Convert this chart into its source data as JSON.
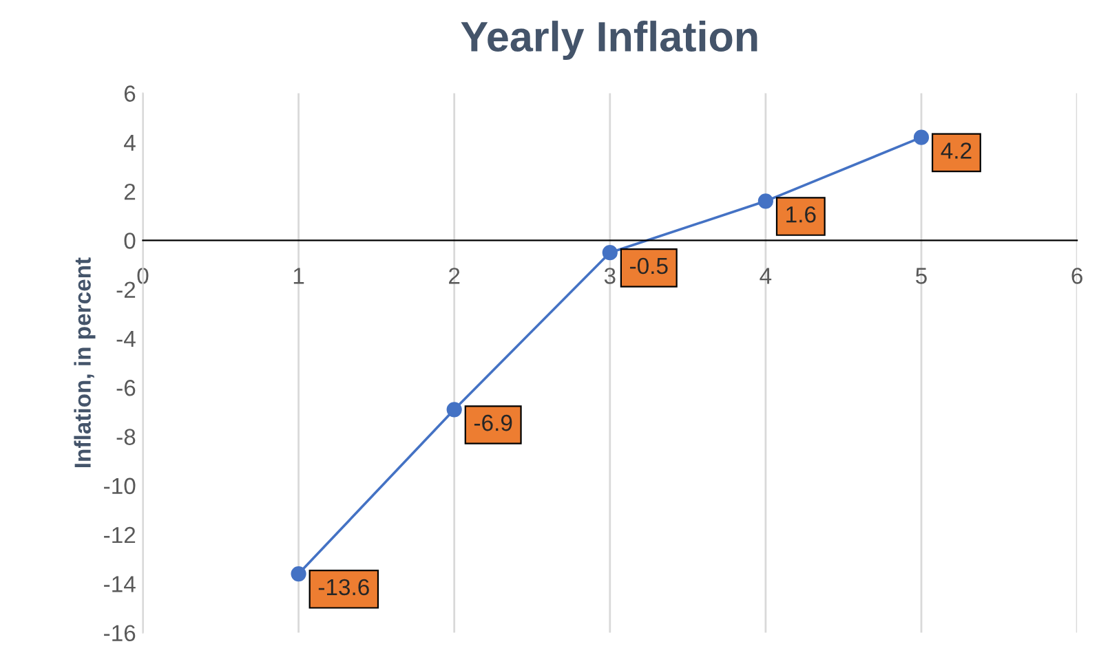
{
  "chart_data": {
    "type": "line",
    "title": "Yearly Inflation",
    "ylabel": "Inflation, in percent",
    "x": [
      1,
      2,
      3,
      4,
      5
    ],
    "series": [
      {
        "color": "#4472c4",
        "values": [
          -13.6,
          -6.9,
          -0.5,
          1.6,
          4.2
        ]
      }
    ],
    "xlim": [
      0,
      6
    ],
    "xticks": [
      0,
      1,
      2,
      3,
      4,
      5,
      6
    ],
    "ylim": [
      -16,
      6
    ],
    "yticks": [
      -16,
      -14,
      -12,
      -10,
      -8,
      -6,
      -4,
      -2,
      0,
      2,
      4,
      6
    ],
    "grid": "x",
    "marker": "circle",
    "line_style": "solid",
    "data_labels": true
  }
}
